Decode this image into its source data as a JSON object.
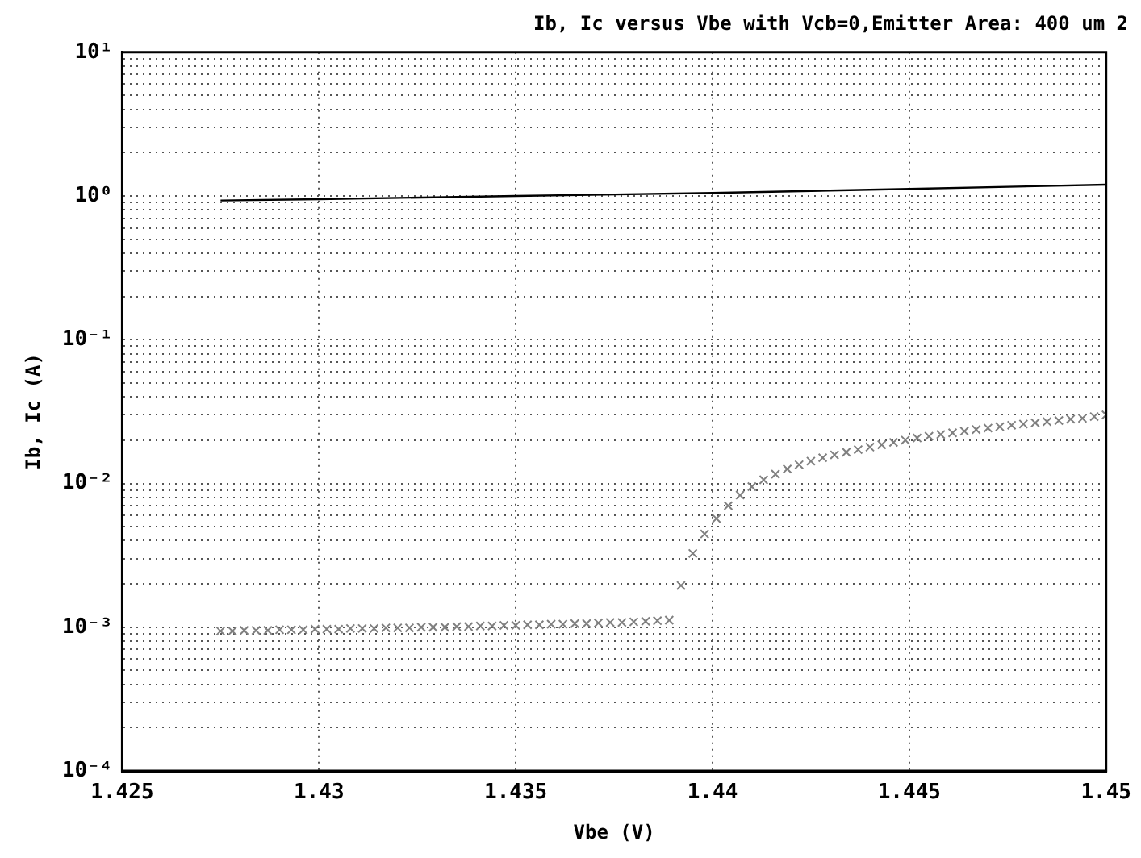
{
  "chart_data": {
    "type": "scatter",
    "title": "Ib, Ic versus Vbe with Vcb=0,Emitter Area: 400 um 2",
    "xlabel": "Vbe (V)",
    "ylabel": "Ib, Ic (A)",
    "log": "y",
    "grid": true,
    "legend": false,
    "xlim": [
      1.425,
      1.45
    ],
    "xticks": [
      {
        "value": 1.425,
        "label": "1.425"
      },
      {
        "value": 1.43,
        "label": "1.43"
      },
      {
        "value": 1.435,
        "label": "1.435"
      },
      {
        "value": 1.44,
        "label": "1.44"
      },
      {
        "value": 1.445,
        "label": "1.445"
      },
      {
        "value": 1.45,
        "label": "1.45"
      }
    ],
    "ylim": [
      0.0001,
      10
    ],
    "yticks": [
      {
        "value": 0.0001,
        "label": "10⁻⁴"
      },
      {
        "value": 0.0002,
        "label": null
      },
      {
        "value": 0.0003,
        "label": null
      },
      {
        "value": 0.0004,
        "label": null
      },
      {
        "value": 0.0005,
        "label": null
      },
      {
        "value": 0.0006,
        "label": null
      },
      {
        "value": 0.0007,
        "label": null
      },
      {
        "value": 0.0008,
        "label": null
      },
      {
        "value": 0.0009,
        "label": null
      },
      {
        "value": 0.001,
        "label": "10⁻³"
      },
      {
        "value": 0.002,
        "label": null
      },
      {
        "value": 0.003,
        "label": null
      },
      {
        "value": 0.004,
        "label": null
      },
      {
        "value": 0.005,
        "label": null
      },
      {
        "value": 0.006,
        "label": null
      },
      {
        "value": 0.007,
        "label": null
      },
      {
        "value": 0.008,
        "label": null
      },
      {
        "value": 0.009,
        "label": null
      },
      {
        "value": 0.01,
        "label": "10⁻²"
      },
      {
        "value": 0.02,
        "label": null
      },
      {
        "value": 0.03,
        "label": null
      },
      {
        "value": 0.04,
        "label": null
      },
      {
        "value": 0.05,
        "label": null
      },
      {
        "value": 0.06,
        "label": null
      },
      {
        "value": 0.07,
        "label": null
      },
      {
        "value": 0.08,
        "label": null
      },
      {
        "value": 0.09,
        "label": null
      },
      {
        "value": 0.1,
        "label": "10⁻¹"
      },
      {
        "value": 0.2,
        "label": null
      },
      {
        "value": 0.3,
        "label": null
      },
      {
        "value": 0.4,
        "label": null
      },
      {
        "value": 0.5,
        "label": null
      },
      {
        "value": 0.6,
        "label": null
      },
      {
        "value": 0.7,
        "label": null
      },
      {
        "value": 0.8,
        "label": null
      },
      {
        "value": 0.9,
        "label": null
      },
      {
        "value": 1,
        "label": "10⁰"
      },
      {
        "value": 2,
        "label": null
      },
      {
        "value": 3,
        "label": null
      },
      {
        "value": 4,
        "label": null
      },
      {
        "value": 5,
        "label": null
      },
      {
        "value": 6,
        "label": null
      },
      {
        "value": 7,
        "label": null
      },
      {
        "value": 8,
        "label": null
      },
      {
        "value": 9,
        "label": null
      },
      {
        "value": 10,
        "label": "10¹"
      }
    ],
    "series": [
      {
        "type": "line",
        "color": "#000000",
        "marker": "none",
        "x": [
          1.4275,
          1.43,
          1.435,
          1.44,
          1.445,
          1.45
        ],
        "values": [
          0.93,
          0.95,
          1.0,
          1.05,
          1.12,
          1.2
        ]
      },
      {
        "type": "scatter",
        "color": "#808080",
        "marker": "cross",
        "x": [
          1.4275,
          1.4278,
          1.4281,
          1.4284,
          1.4287,
          1.429,
          1.4293,
          1.4296,
          1.4299,
          1.4302,
          1.4305,
          1.4308,
          1.4311,
          1.4314,
          1.4317,
          1.432,
          1.4323,
          1.4326,
          1.4329,
          1.4332,
          1.4335,
          1.4338,
          1.4341,
          1.4344,
          1.4347,
          1.435,
          1.4353,
          1.4356,
          1.4359,
          1.4362,
          1.4365,
          1.4368,
          1.4371,
          1.4374,
          1.4377,
          1.438,
          1.4383,
          1.4386,
          1.4389,
          1.4392,
          1.4395,
          1.4398,
          1.4401,
          1.4404,
          1.4407,
          1.441,
          1.4413,
          1.4416,
          1.4419,
          1.4422,
          1.4425,
          1.4428,
          1.4431,
          1.4434,
          1.4437,
          1.444,
          1.4443,
          1.4446,
          1.4449,
          1.4452,
          1.4455,
          1.4458,
          1.4461,
          1.4464,
          1.4467,
          1.447,
          1.4473,
          1.4476,
          1.4479,
          1.4482,
          1.4485,
          1.4488,
          1.4491,
          1.4494,
          1.4497,
          1.45
        ],
        "values": [
          0.00094,
          0.00094,
          0.00095,
          0.00095,
          0.00095,
          0.00096,
          0.00096,
          0.00096,
          0.00097,
          0.00097,
          0.00097,
          0.00098,
          0.00098,
          0.00098,
          0.00099,
          0.00099,
          0.00099,
          0.001,
          0.001,
          0.001,
          0.00101,
          0.00101,
          0.00102,
          0.00102,
          0.00103,
          0.00103,
          0.00104,
          0.00104,
          0.00105,
          0.00105,
          0.00106,
          0.00106,
          0.00107,
          0.00108,
          0.00108,
          0.00109,
          0.0011,
          0.00111,
          0.00112,
          0.00195,
          0.00326,
          0.00445,
          0.0057,
          0.007,
          0.0083,
          0.0095,
          0.0106,
          0.0116,
          0.0126,
          0.0135,
          0.0143,
          0.0151,
          0.0158,
          0.0165,
          0.0172,
          0.0179,
          0.0186,
          0.0193,
          0.02,
          0.0207,
          0.0213,
          0.0219,
          0.0225,
          0.0231,
          0.0237,
          0.0243,
          0.0248,
          0.0254,
          0.0259,
          0.0264,
          0.0269,
          0.0274,
          0.028,
          0.0284,
          0.0292,
          0.03
        ]
      }
    ]
  }
}
